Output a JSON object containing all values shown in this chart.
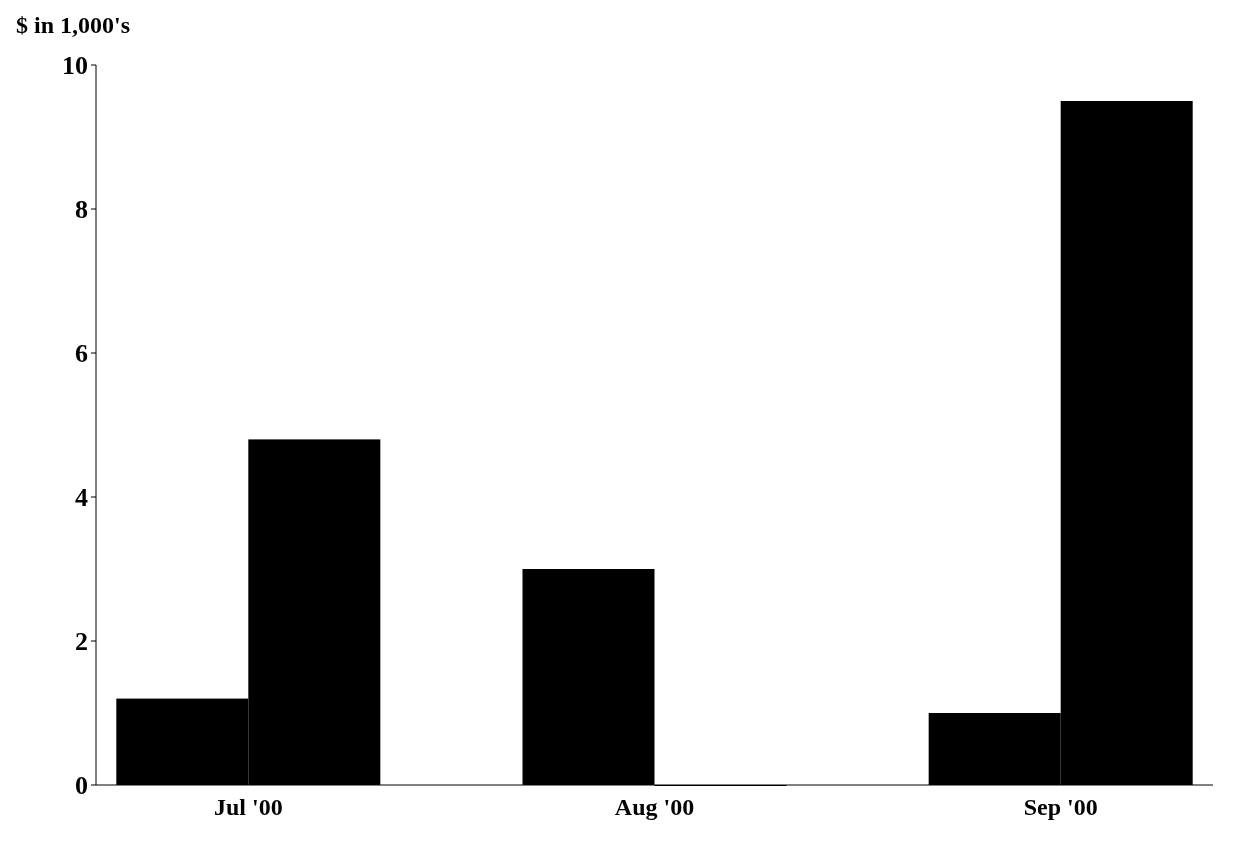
{
  "chart_data": {
    "type": "bar",
    "ylabel": "$ in 1,000's",
    "categories": [
      "Jul '00",
      "Aug '00",
      "Sep '00"
    ],
    "series": [
      {
        "color": "#000000",
        "values": [
          1.2,
          3.0,
          1.0
        ]
      },
      {
        "color": "#000000",
        "values": [
          4.8,
          0,
          9.5
        ]
      }
    ],
    "ylim": [
      0,
      10
    ],
    "yticks": [
      0,
      2,
      4,
      6,
      8,
      10
    ],
    "grid": false
  }
}
